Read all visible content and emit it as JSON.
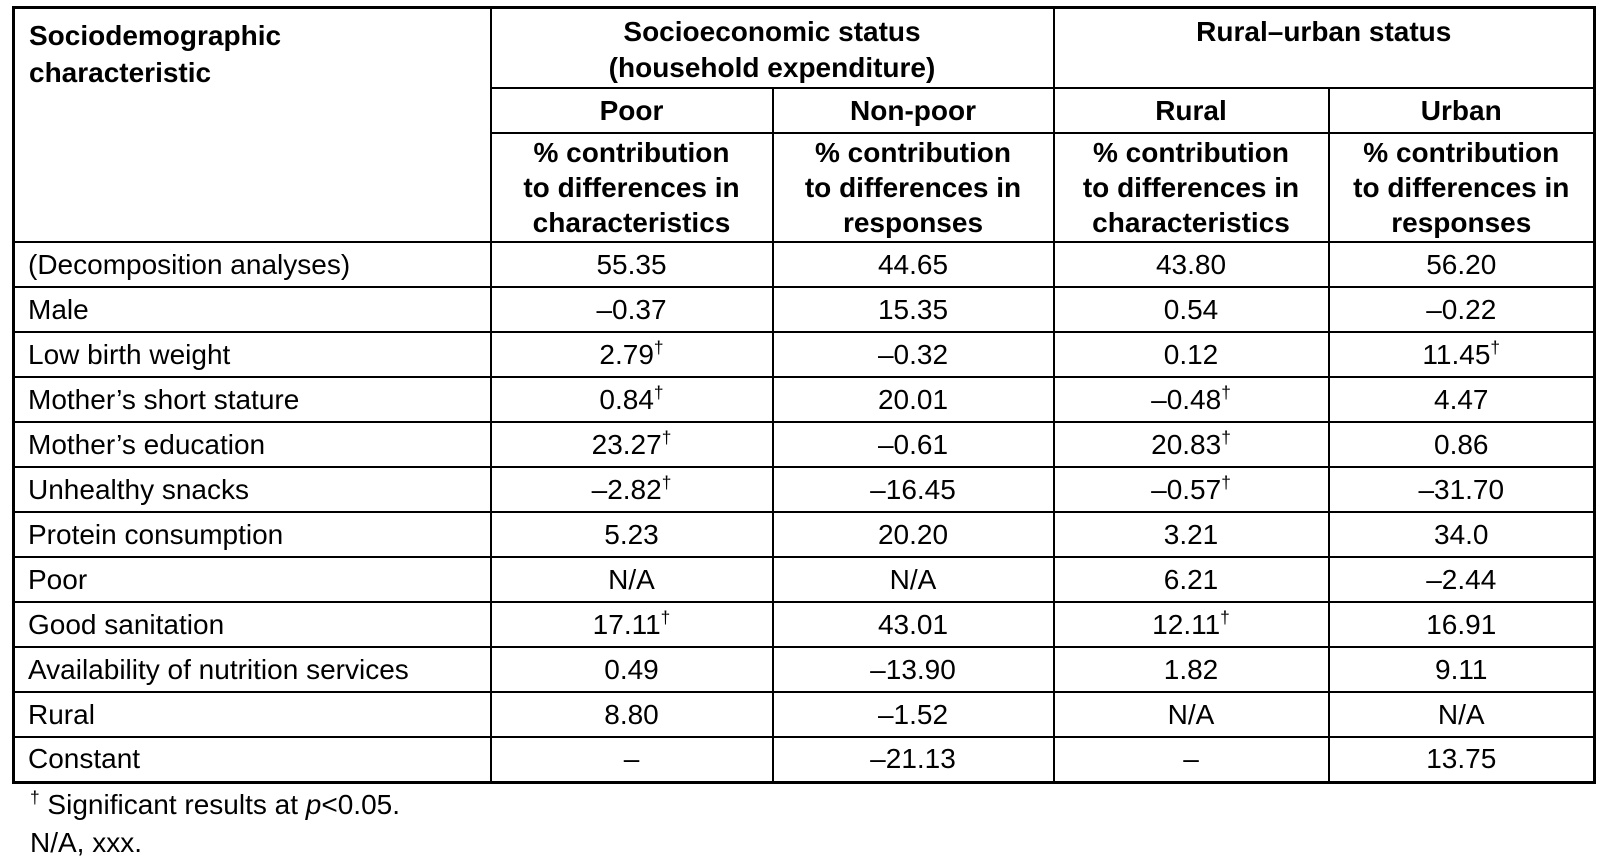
{
  "table": {
    "corner_header": "Sociodemographic\ncharacteristic",
    "group_headers": [
      "Socioeconomic status\n(household expenditure)",
      "Rural–urban status"
    ],
    "sub_headers": [
      "Poor",
      "Non-poor",
      "Rural",
      "Urban"
    ],
    "measure_headers": [
      "% contribution\nto differences in\ncharacteristics",
      "% contribution\nto differences in\nresponses",
      "% contribution\nto differences in\ncharacteristics",
      "% contribution\nto differences in\nresponses"
    ],
    "rows": [
      {
        "label": "(Decomposition analyses)",
        "values": [
          "55.35",
          "44.65",
          "43.80",
          "56.20"
        ]
      },
      {
        "label": "Male",
        "values": [
          "–0.37",
          "15.35",
          "0.54",
          "–0.22"
        ]
      },
      {
        "label": "Low birth weight",
        "values": [
          "2.79†",
          "–0.32",
          "0.12",
          "11.45†"
        ]
      },
      {
        "label": "Mother’s short stature",
        "values": [
          "0.84†",
          "20.01",
          "–0.48†",
          "4.47"
        ]
      },
      {
        "label": "Mother’s education",
        "values": [
          "23.27†",
          "–0.61",
          "20.83†",
          "0.86"
        ]
      },
      {
        "label": "Unhealthy snacks",
        "values": [
          "–2.82†",
          "–16.45",
          "–0.57†",
          "–31.70"
        ]
      },
      {
        "label": "Protein consumption",
        "values": [
          "5.23",
          "20.20",
          "3.21",
          "34.0"
        ]
      },
      {
        "label": "Poor",
        "values": [
          "N/A",
          "N/A",
          "6.21",
          "–2.44"
        ]
      },
      {
        "label": "Good sanitation",
        "values": [
          "17.11†",
          "43.01",
          "12.11†",
          "16.91"
        ]
      },
      {
        "label": "Availability of nutrition services",
        "values": [
          "0.49",
          "–13.90",
          "1.82",
          "9.11"
        ]
      },
      {
        "label": "Rural",
        "values": [
          "8.80",
          "–1.52",
          "N/A",
          "N/A"
        ]
      },
      {
        "label": "Constant",
        "values": [
          "–",
          "–21.13",
          "–",
          "13.75"
        ]
      }
    ]
  },
  "footnotes": {
    "dagger_symbol": "†",
    "line1_text": " Significant results at ",
    "line1_p": "p",
    "line1_suffix": "<0.05.",
    "line2": "N/A, xxx."
  },
  "colors": {
    "background": "#ffffff",
    "text": "#000000",
    "border": "#000000"
  }
}
